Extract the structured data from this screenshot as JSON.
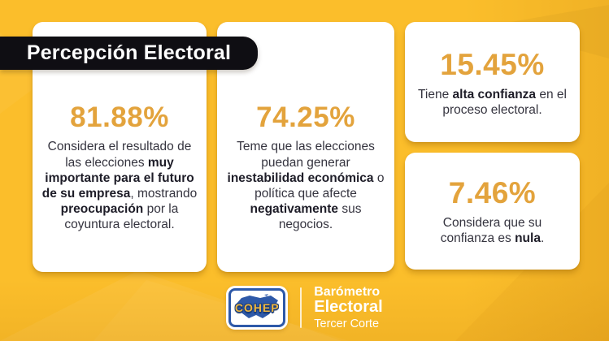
{
  "title": {
    "label": "Percepción Electoral"
  },
  "colors": {
    "background": "#FBBE2B",
    "banner": "#0F0E13",
    "accent_number": "#E3A33C",
    "card": "#FFFFFF",
    "body_text": "#35343F",
    "logo_blue": "#2E59A8",
    "logo_gold": "#F0B73F"
  },
  "cards": [
    {
      "value": "81.88%",
      "segments": [
        {
          "t": "Considera el resultado de las elecciones ",
          "b": false
        },
        {
          "t": "muy importante para el futuro de su empresa",
          "b": true
        },
        {
          "t": ", mostrando ",
          "b": false
        },
        {
          "t": "preocupación",
          "b": true
        },
        {
          "t": " por la coyuntura electoral.",
          "b": false
        }
      ]
    },
    {
      "value": "74.25%",
      "segments": [
        {
          "t": "Teme que las elecciones puedan generar ",
          "b": false
        },
        {
          "t": "inestabilidad económica",
          "b": true
        },
        {
          "t": " o política que afecte ",
          "b": false
        },
        {
          "t": "negativamente",
          "b": true
        },
        {
          "t": " sus negocios.",
          "b": false
        }
      ]
    },
    {
      "value": "15.45%",
      "segments": [
        {
          "t": "Tiene ",
          "b": false
        },
        {
          "t": "alta confianza",
          "b": true
        },
        {
          "t": " en el proceso electoral.",
          "b": false
        }
      ]
    },
    {
      "value": "7.46%",
      "segments": [
        {
          "t": "Considera que su confianza es ",
          "b": false
        },
        {
          "t": "nula",
          "b": true
        },
        {
          "t": ".",
          "b": false
        }
      ]
    }
  ],
  "footer": {
    "logo_label": "COHEP",
    "brand_line1": "Barómetro",
    "brand_line2": "Electoral",
    "brand_line3": "Tercer Corte"
  }
}
